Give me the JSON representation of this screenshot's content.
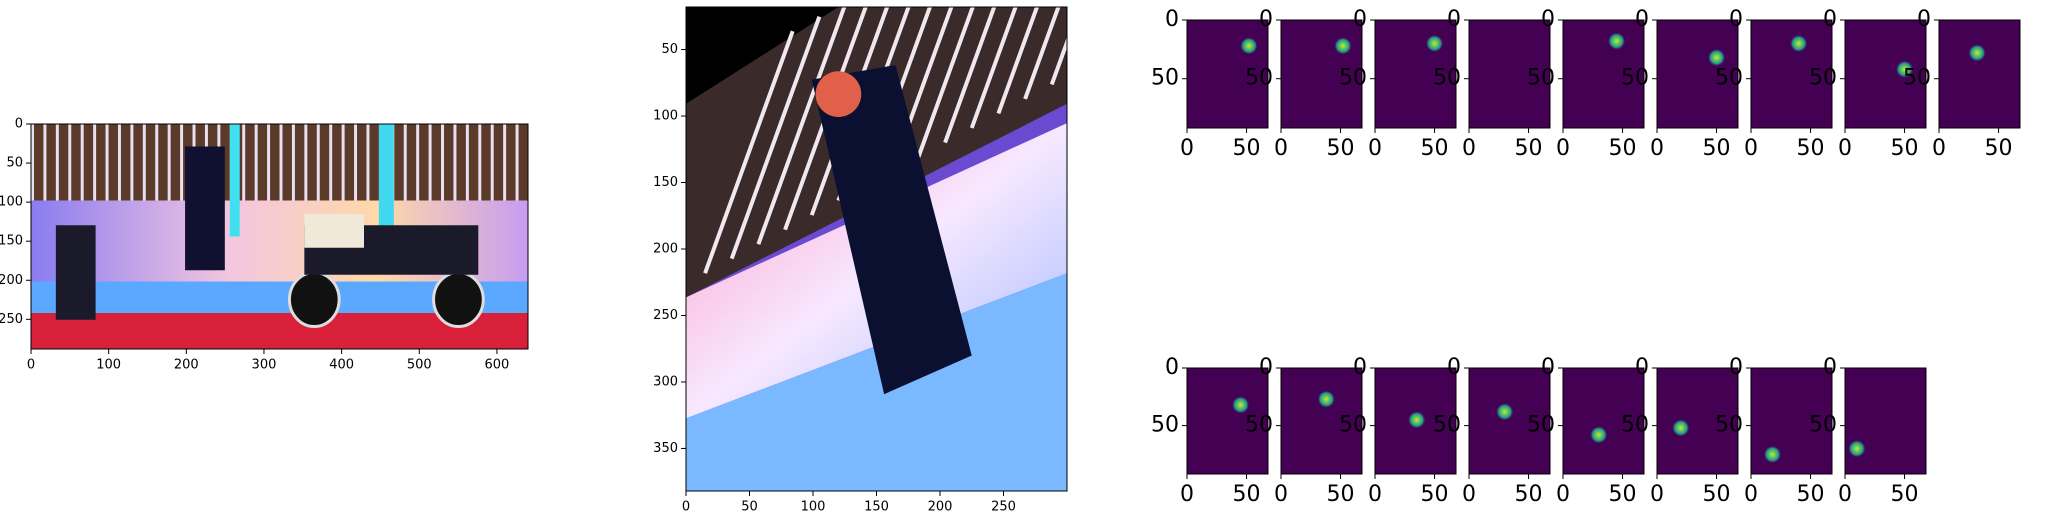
{
  "chart_data": [
    {
      "type": "image",
      "xlim": [
        0,
        640
      ],
      "ylim": [
        288,
        0
      ],
      "xticks": [
        0,
        100,
        200,
        300,
        400,
        500,
        600
      ],
      "yticks": [
        0,
        50,
        100,
        150,
        200,
        250
      ]
    },
    {
      "type": "image",
      "xlim": [
        0,
        300
      ],
      "ylim": [
        382,
        18
      ],
      "xticks": [
        0,
        50,
        100,
        150,
        200,
        250
      ],
      "yticks": [
        50,
        100,
        150,
        200,
        250,
        300,
        350
      ]
    },
    {
      "type": "heatmap",
      "color": "#440154",
      "xlim": [
        0,
        68
      ],
      "ylim": [
        92,
        0
      ],
      "xticks": [
        0,
        50
      ],
      "yticks": [
        0,
        50
      ],
      "x": [
        52
      ],
      "y": [
        22
      ]
    },
    {
      "type": "heatmap",
      "color": "#440154",
      "xlim": [
        0,
        68
      ],
      "ylim": [
        92,
        0
      ],
      "xticks": [
        0,
        50
      ],
      "yticks": [
        0,
        50
      ],
      "x": [
        52
      ],
      "y": [
        22
      ]
    },
    {
      "type": "heatmap",
      "color": "#440154",
      "xlim": [
        0,
        68
      ],
      "ylim": [
        92,
        0
      ],
      "xticks": [
        0,
        50
      ],
      "yticks": [
        0,
        50
      ],
      "x": [
        50
      ],
      "y": [
        20
      ]
    },
    {
      "type": "heatmap",
      "color": "#440154",
      "xlim": [
        0,
        68
      ],
      "ylim": [
        92,
        0
      ],
      "xticks": [
        0,
        50
      ],
      "yticks": [
        0,
        50
      ],
      "x": [],
      "y": []
    },
    {
      "type": "heatmap",
      "color": "#440154",
      "xlim": [
        0,
        68
      ],
      "ylim": [
        92,
        0
      ],
      "xticks": [
        0,
        50
      ],
      "yticks": [
        0,
        50
      ],
      "x": [
        45
      ],
      "y": [
        18
      ]
    },
    {
      "type": "heatmap",
      "color": "#440154",
      "xlim": [
        0,
        68
      ],
      "ylim": [
        92,
        0
      ],
      "xticks": [
        0,
        50
      ],
      "yticks": [
        0,
        50
      ],
      "x": [
        50
      ],
      "y": [
        32
      ]
    },
    {
      "type": "heatmap",
      "color": "#440154",
      "xlim": [
        0,
        68
      ],
      "ylim": [
        92,
        0
      ],
      "xticks": [
        0,
        50
      ],
      "yticks": [
        0,
        50
      ],
      "x": [
        40
      ],
      "y": [
        20
      ]
    },
    {
      "type": "heatmap",
      "color": "#440154",
      "xlim": [
        0,
        68
      ],
      "ylim": [
        92,
        0
      ],
      "xticks": [
        0,
        50
      ],
      "yticks": [
        0,
        50
      ],
      "x": [
        50
      ],
      "y": [
        42
      ]
    },
    {
      "type": "heatmap",
      "color": "#440154",
      "xlim": [
        0,
        68
      ],
      "ylim": [
        92,
        0
      ],
      "xticks": [
        0,
        50
      ],
      "yticks": [
        0,
        50
      ],
      "x": [
        32
      ],
      "y": [
        28
      ]
    },
    {
      "type": "heatmap",
      "color": "#440154",
      "xlim": [
        0,
        68
      ],
      "ylim": [
        92,
        0
      ],
      "xticks": [
        0,
        50
      ],
      "yticks": [
        0,
        50
      ],
      "x": [
        45
      ],
      "y": [
        32
      ]
    },
    {
      "type": "heatmap",
      "color": "#440154",
      "xlim": [
        0,
        68
      ],
      "ylim": [
        92,
        0
      ],
      "xticks": [
        0,
        50
      ],
      "yticks": [
        0,
        50
      ],
      "x": [
        38
      ],
      "y": [
        27
      ]
    },
    {
      "type": "heatmap",
      "color": "#440154",
      "xlim": [
        0,
        68
      ],
      "ylim": [
        92,
        0
      ],
      "xticks": [
        0,
        50
      ],
      "yticks": [
        0,
        50
      ],
      "x": [
        35
      ],
      "y": [
        45
      ]
    },
    {
      "type": "heatmap",
      "color": "#440154",
      "xlim": [
        0,
        68
      ],
      "ylim": [
        92,
        0
      ],
      "xticks": [
        0,
        50
      ],
      "yticks": [
        0,
        50
      ],
      "x": [
        30
      ],
      "y": [
        38
      ]
    },
    {
      "type": "heatmap",
      "color": "#440154",
      "xlim": [
        0,
        68
      ],
      "ylim": [
        92,
        0
      ],
      "xticks": [
        0,
        50
      ],
      "yticks": [
        0,
        50
      ],
      "x": [
        30
      ],
      "y": [
        58
      ]
    },
    {
      "type": "heatmap",
      "color": "#440154",
      "xlim": [
        0,
        68
      ],
      "ylim": [
        92,
        0
      ],
      "xticks": [
        0,
        50
      ],
      "yticks": [
        0,
        50
      ],
      "x": [
        20
      ],
      "y": [
        52
      ]
    },
    {
      "type": "heatmap",
      "color": "#440154",
      "xlim": [
        0,
        68
      ],
      "ylim": [
        92,
        0
      ],
      "xticks": [
        0,
        50
      ],
      "yticks": [
        0,
        50
      ],
      "x": [
        18
      ],
      "y": [
        75
      ]
    },
    {
      "type": "heatmap",
      "color": "#440154",
      "xlim": [
        0,
        68
      ],
      "ylim": [
        92,
        0
      ],
      "xticks": [
        0,
        50
      ],
      "yticks": [
        0,
        50
      ],
      "x": [
        10
      ],
      "y": [
        70
      ]
    }
  ]
}
